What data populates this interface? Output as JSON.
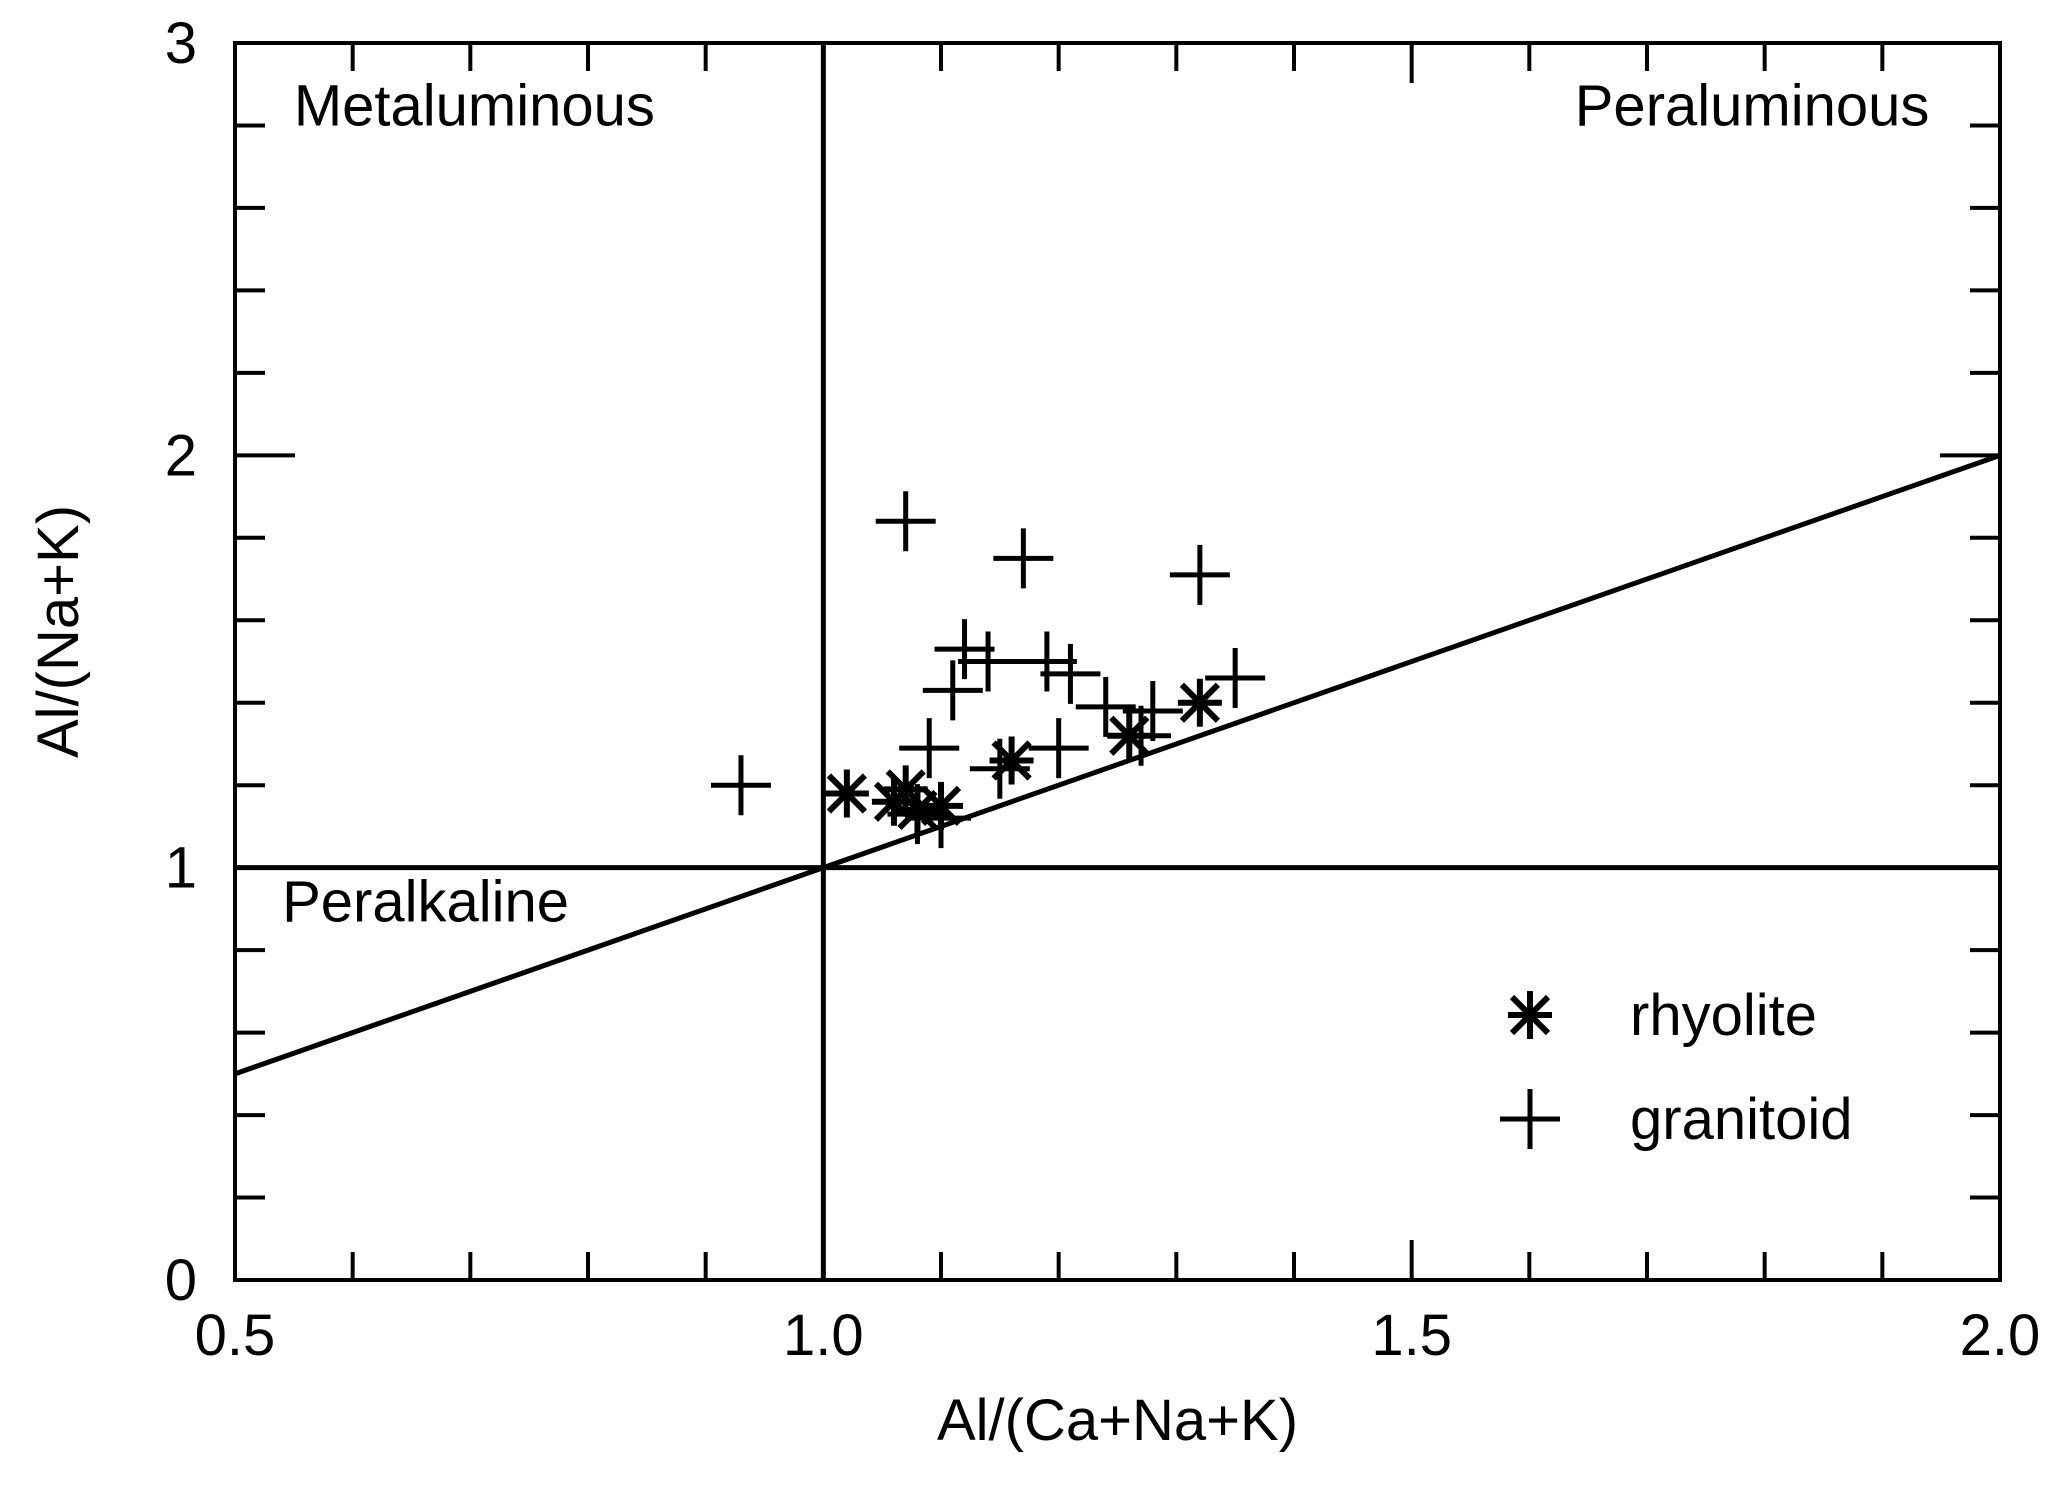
{
  "chart_data": {
    "type": "scatter",
    "title": "",
    "xlabel": "Al/(Ca+Na+K)",
    "ylabel": "Al/(Na+K)",
    "xlim": [
      0.5,
      2.0
    ],
    "ylim": [
      0,
      3
    ],
    "x_major_ticks": [
      0.5,
      1.0,
      1.5,
      2.0
    ],
    "x_tick_labels": [
      "0.5",
      "1.0",
      "1.5",
      "2.0"
    ],
    "x_minor_ticks": [
      0.6,
      0.7,
      0.8,
      0.9,
      1.1,
      1.2,
      1.3,
      1.4,
      1.6,
      1.7,
      1.8,
      1.9
    ],
    "y_major_ticks": [
      0,
      1,
      2,
      3
    ],
    "y_tick_labels": [
      "0",
      "1",
      "2",
      "3"
    ],
    "y_minor_ticks": [
      0.2,
      0.4,
      0.6,
      0.8,
      1.2,
      1.4,
      1.6,
      1.8,
      2.2,
      2.4,
      2.6,
      2.8
    ],
    "grid": false,
    "reference_lines": [
      {
        "name": "vertical-ratio-line",
        "x1": 1.0,
        "y1": 0,
        "x2": 1.0,
        "y2": 3
      },
      {
        "name": "horizontal-ratio-line",
        "x1": 0.5,
        "y1": 1.0,
        "x2": 2.0,
        "y2": 1.0
      },
      {
        "name": "diagonal-ratio-line",
        "x1": 0.5,
        "y1": 0.5,
        "x2": 2.0,
        "y2": 2.0
      }
    ],
    "regions": [
      {
        "name": "metaluminous",
        "label": "Metaluminous",
        "x": 0.55,
        "y": 2.8,
        "anchor": "start"
      },
      {
        "name": "peraluminous",
        "label": "Peraluminous",
        "x": 1.94,
        "y": 2.8,
        "anchor": "end"
      },
      {
        "name": "peralkaline",
        "label": "Peralkaline",
        "x": 0.54,
        "y": 0.87,
        "anchor": "start"
      }
    ],
    "series": [
      {
        "name": "rhyolite",
        "marker": "asterisk",
        "points": [
          {
            "x": 1.02,
            "y": 1.18
          },
          {
            "x": 1.06,
            "y": 1.16
          },
          {
            "x": 1.07,
            "y": 1.19
          },
          {
            "x": 1.08,
            "y": 1.14
          },
          {
            "x": 1.1,
            "y": 1.15
          },
          {
            "x": 1.16,
            "y": 1.26
          },
          {
            "x": 1.26,
            "y": 1.32
          },
          {
            "x": 1.32,
            "y": 1.4
          }
        ]
      },
      {
        "name": "granitoid",
        "marker": "plus",
        "points": [
          {
            "x": 0.93,
            "y": 1.2
          },
          {
            "x": 1.07,
            "y": 1.84
          },
          {
            "x": 1.17,
            "y": 1.75
          },
          {
            "x": 1.32,
            "y": 1.71
          },
          {
            "x": 1.12,
            "y": 1.53
          },
          {
            "x": 1.14,
            "y": 1.5
          },
          {
            "x": 1.19,
            "y": 1.5
          },
          {
            "x": 1.21,
            "y": 1.47
          },
          {
            "x": 1.11,
            "y": 1.43
          },
          {
            "x": 1.24,
            "y": 1.39
          },
          {
            "x": 1.28,
            "y": 1.38
          },
          {
            "x": 1.35,
            "y": 1.46
          },
          {
            "x": 1.09,
            "y": 1.29
          },
          {
            "x": 1.2,
            "y": 1.29
          },
          {
            "x": 1.15,
            "y": 1.24
          },
          {
            "x": 1.27,
            "y": 1.32
          },
          {
            "x": 1.08,
            "y": 1.13
          },
          {
            "x": 1.1,
            "y": 1.12
          }
        ]
      }
    ],
    "legend": {
      "placement": "bottom-right",
      "entries": [
        {
          "marker": "asterisk",
          "label": "rhyolite"
        },
        {
          "marker": "plus",
          "label": "granitoid"
        }
      ]
    }
  }
}
